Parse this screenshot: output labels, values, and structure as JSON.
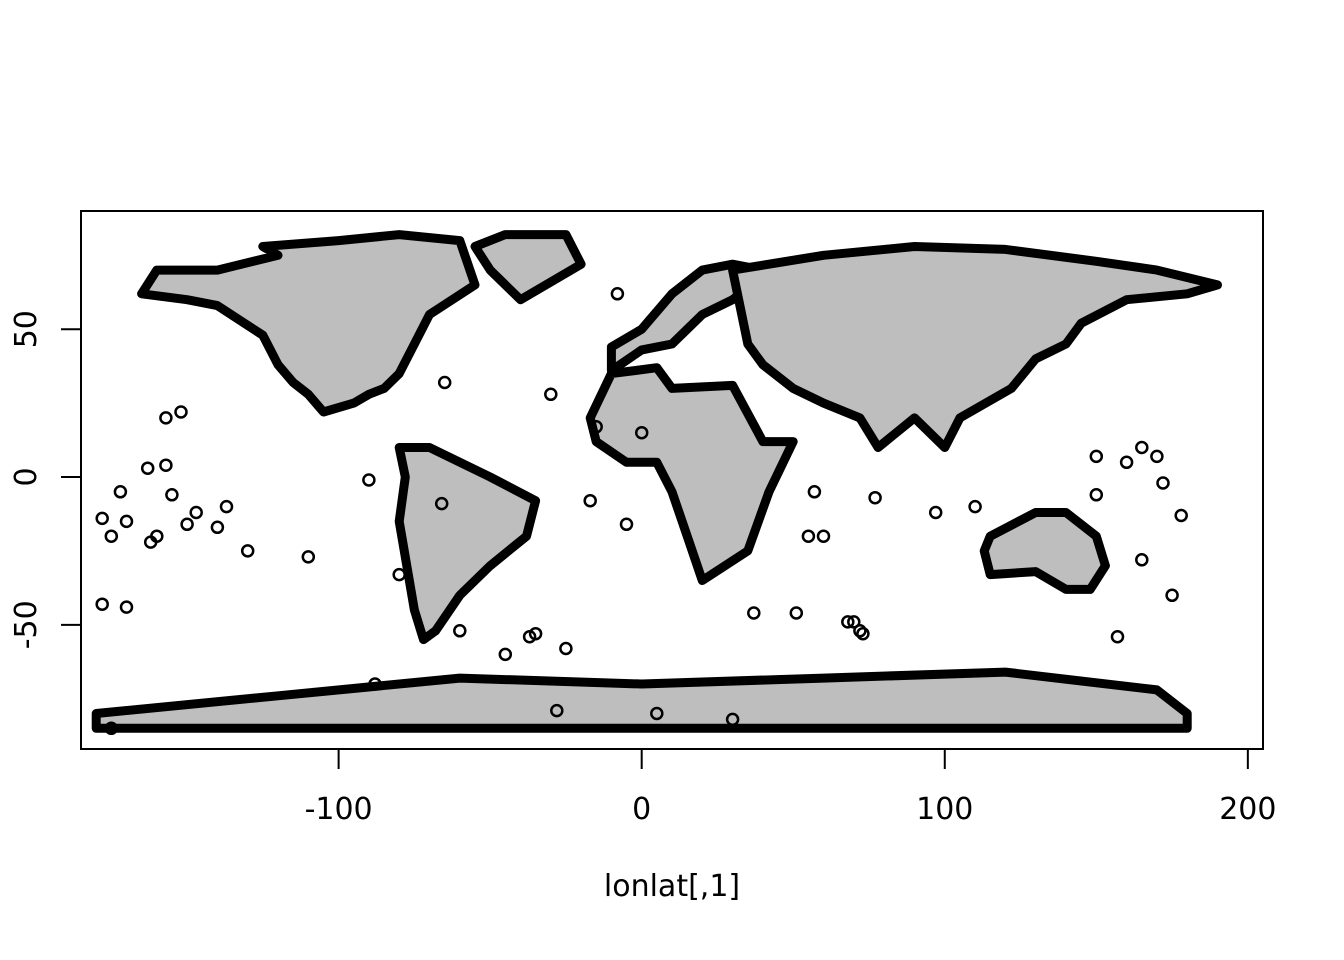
{
  "chart_data": {
    "type": "scatter",
    "title": "",
    "xlabel": "lonlat[,1]",
    "ylabel": "",
    "xlim": [
      -185,
      205
    ],
    "ylim": [
      -92,
      90
    ],
    "x_ticks": [
      -100,
      0,
      100,
      200
    ],
    "x_tick_labels": [
      "-100",
      "0",
      "100",
      "200"
    ],
    "y_ticks": [
      -50,
      0,
      50
    ],
    "y_tick_labels": [
      "-50",
      "0",
      "50"
    ],
    "grid": false,
    "legend": "none",
    "fill_color": "#bebebe",
    "point_color": "#000000",
    "series": [
      {
        "kind": "polygon",
        "x": [
          -140,
          -120,
          -125,
          -100,
          -80,
          -60,
          -55,
          -70,
          -75,
          -80,
          -85,
          -90,
          -95,
          -105,
          -110,
          -115,
          -120,
          -125,
          -140,
          -150,
          -165,
          -160
        ],
        "y": [
          70,
          75,
          78,
          80,
          82,
          80,
          65,
          55,
          45,
          35,
          30,
          28,
          25,
          22,
          28,
          32,
          38,
          48,
          58,
          60,
          62,
          70
        ]
      },
      {
        "kind": "polygon",
        "x": [
          -45,
          -25,
          -20,
          -40,
          -50,
          -55
        ],
        "y": [
          82,
          82,
          72,
          60,
          70,
          78
        ]
      },
      {
        "kind": "polygon",
        "x": [
          -80,
          -70,
          -50,
          -35,
          -38,
          -50,
          -60,
          -68,
          -72,
          -75,
          -80,
          -78
        ],
        "y": [
          10,
          10,
          0,
          -8,
          -20,
          -30,
          -40,
          -52,
          -55,
          -45,
          -15,
          0
        ]
      },
      {
        "kind": "polygon",
        "x": [
          -10,
          5,
          10,
          30,
          40,
          50,
          42,
          35,
          20,
          15,
          10,
          5,
          -5,
          -15,
          -17
        ],
        "y": [
          35,
          37,
          30,
          31,
          12,
          12,
          -5,
          -25,
          -35,
          -20,
          -5,
          5,
          5,
          12,
          20
        ]
      },
      {
        "kind": "polygon",
        "x": [
          -10,
          0,
          10,
          20,
          30,
          40,
          40,
          30,
          20,
          10,
          0,
          -10
        ],
        "y": [
          36,
          43,
          45,
          55,
          60,
          68,
          70,
          72,
          70,
          62,
          50,
          44
        ]
      },
      {
        "kind": "polygon",
        "x": [
          30,
          60,
          90,
          120,
          150,
          170,
          190,
          180,
          160,
          145,
          140,
          130,
          122,
          105,
          100,
          90,
          78,
          72,
          60,
          50,
          40,
          35
        ],
        "y": [
          70,
          75,
          78,
          77,
          73,
          70,
          65,
          62,
          60,
          52,
          45,
          40,
          30,
          20,
          10,
          20,
          10,
          20,
          25,
          30,
          38,
          45
        ]
      },
      {
        "kind": "polygon",
        "x": [
          115,
          130,
          140,
          150,
          153,
          148,
          140,
          130,
          115,
          113
        ],
        "y": [
          -20,
          -12,
          -12,
          -20,
          -30,
          -38,
          -38,
          -32,
          -33,
          -25
        ]
      },
      {
        "kind": "polygon",
        "x": [
          -180,
          -120,
          -60,
          0,
          60,
          120,
          170,
          180,
          180,
          -180
        ],
        "y": [
          -80,
          -74,
          -68,
          -70,
          -68,
          -66,
          -72,
          -80,
          -85,
          -85
        ]
      },
      {
        "kind": "points",
        "x": [
          -175,
          -178,
          -172,
          -170,
          -160,
          -157,
          -155,
          -150,
          -147,
          -140,
          -137,
          -130,
          -110,
          -90,
          -65,
          -35,
          -25,
          -17,
          -15,
          -5,
          0,
          55,
          57,
          60,
          70,
          73,
          77,
          97,
          110,
          150,
          157,
          160,
          165,
          170,
          172,
          178,
          175,
          165,
          -60,
          -45,
          -37,
          37,
          51,
          68,
          72,
          150,
          -88,
          -80,
          -178,
          -170,
          -152,
          -157,
          -162,
          -163,
          -175,
          5,
          30,
          -28,
          -30,
          -66,
          -8
        ],
        "y": [
          -20,
          -14,
          -5,
          -15,
          -20,
          4,
          -6,
          -16,
          -12,
          -17,
          -10,
          -25,
          -27,
          -1,
          32,
          -53,
          -58,
          -8,
          17,
          -16,
          15,
          -20,
          -5,
          -20,
          -49,
          -53,
          -7,
          -12,
          -10,
          -6,
          -54,
          5,
          10,
          7,
          -2,
          -13,
          -40,
          -28,
          -52,
          -60,
          -54,
          -46,
          -46,
          -49,
          -52,
          7,
          -70,
          -33,
          -43,
          -44,
          22,
          20,
          -22,
          3,
          -85,
          -80,
          -82,
          -79,
          28,
          -9,
          62
        ]
      }
    ]
  }
}
